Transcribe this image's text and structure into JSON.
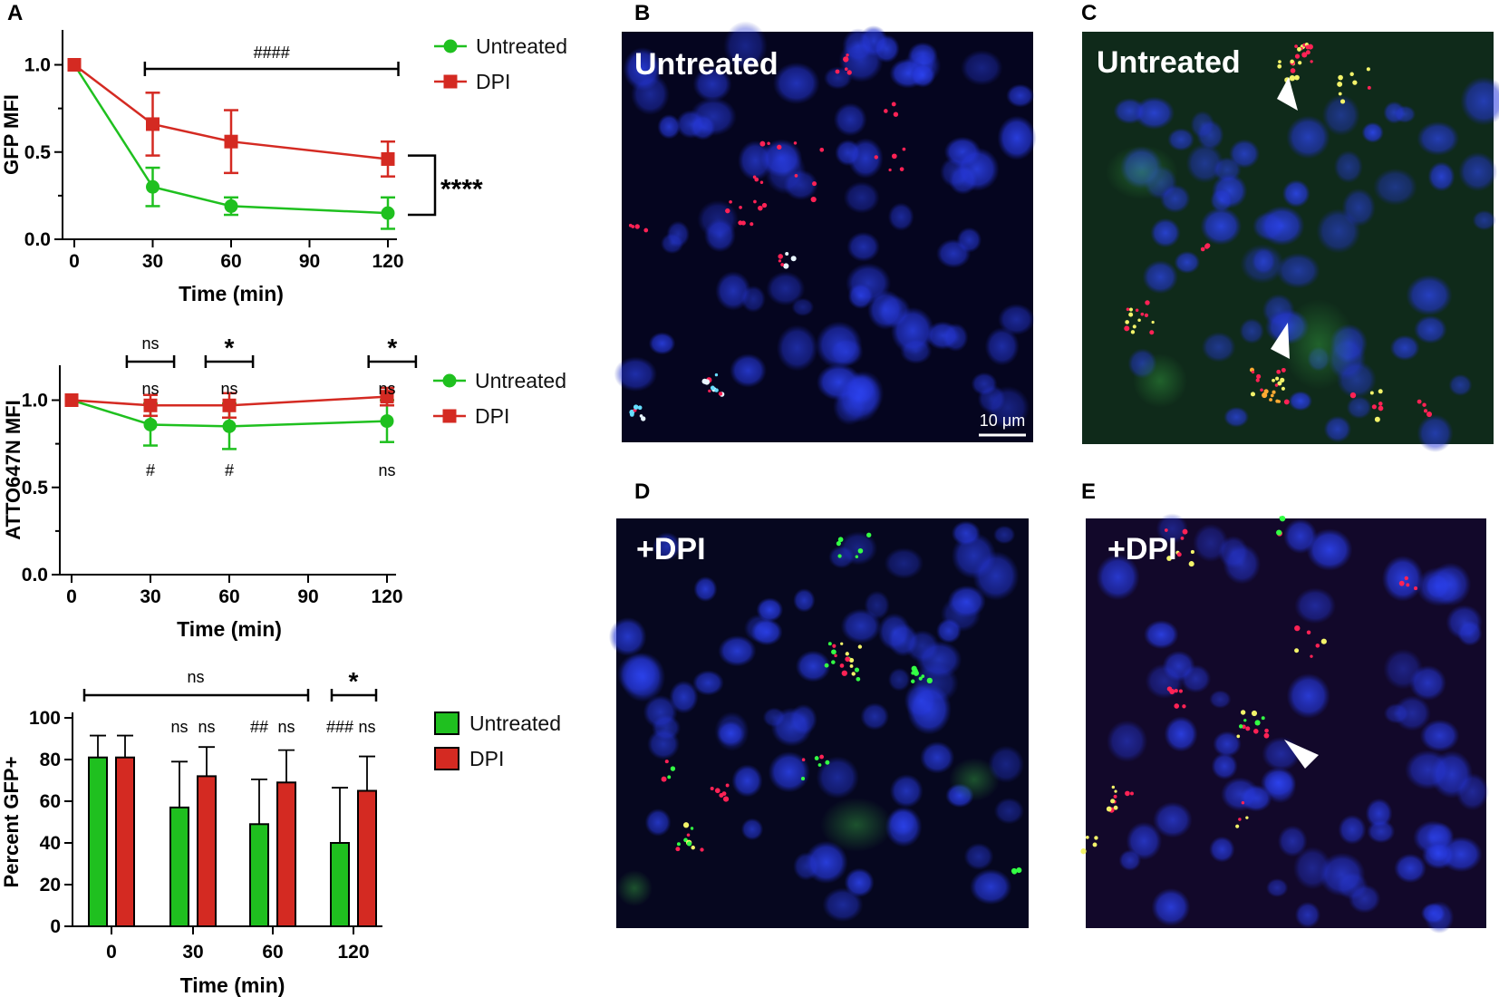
{
  "panel_labels": {
    "a": "A",
    "b": "B",
    "c": "C",
    "d": "D",
    "e": "E"
  },
  "colors": {
    "untreated": "#1fc01f",
    "dpi": "#d42a22",
    "nucleus": "#2233dd",
    "spot_red": "#ff2255",
    "spot_green": "#33ff44",
    "spot_yellow": "#f3f36a"
  },
  "chart_data": [
    {
      "type": "line",
      "x": [
        0,
        30,
        60,
        120
      ],
      "xticks": [
        "0",
        "30",
        "60",
        "90",
        "120"
      ],
      "xlabel": "Time (min)",
      "ylabel": "GFP MFI",
      "yticks": [
        "0.0",
        "0.5",
        "1.0"
      ],
      "ylim": [
        0,
        1.2
      ],
      "series": [
        {
          "name": "Untreated",
          "values": [
            1.0,
            0.3,
            0.19,
            0.15
          ],
          "errors": [
            0,
            0.11,
            0.05,
            0.09
          ]
        },
        {
          "name": "DPI",
          "values": [
            1.0,
            0.66,
            0.56,
            0.46
          ],
          "errors": [
            0,
            0.18,
            0.18,
            0.1
          ]
        }
      ],
      "annotations": {
        "hash": "####",
        "stars": "****"
      },
      "legend": [
        "Untreated",
        "DPI"
      ]
    },
    {
      "type": "line",
      "x": [
        0,
        30,
        60,
        120
      ],
      "xticks": [
        "0",
        "30",
        "60",
        "90",
        "120"
      ],
      "xlabel": "Time (min)",
      "ylabel": "ATTO647N MFI",
      "yticks": [
        "0.0",
        "0.5",
        "1.0"
      ],
      "ylim": [
        0,
        1.2
      ],
      "series": [
        {
          "name": "Untreated",
          "values": [
            1.0,
            0.86,
            0.85,
            0.88
          ],
          "errors": [
            0,
            0.12,
            0.13,
            0.12
          ]
        },
        {
          "name": "DPI",
          "values": [
            1.0,
            0.97,
            0.97,
            1.02
          ],
          "errors": [
            0,
            0.06,
            0.07,
            0.05
          ]
        }
      ],
      "annotations": {
        "top": [
          "ns",
          "*",
          "*"
        ],
        "dpi_sig": [
          "ns",
          "ns",
          "ns"
        ],
        "untreated_sig": [
          "#",
          "#",
          "ns"
        ]
      },
      "legend": [
        "Untreated",
        "DPI"
      ]
    },
    {
      "type": "bar",
      "categories": [
        "0",
        "30",
        "60",
        "120"
      ],
      "xlabel": "Time (min)",
      "ylabel": "Percent GFP+",
      "yticks": [
        "0",
        "20",
        "40",
        "60",
        "80",
        "100"
      ],
      "ylim": [
        0,
        100
      ],
      "series": [
        {
          "name": "Untreated",
          "values": [
            81,
            57,
            49,
            40
          ],
          "errors": [
            10.5,
            22,
            21.5,
            26.5
          ]
        },
        {
          "name": "DPI",
          "values": [
            81,
            72,
            69,
            65
          ],
          "errors": [
            10.5,
            14,
            15.5,
            16.5
          ]
        }
      ],
      "annotations": {
        "overall": "ns",
        "star120": "*",
        "untreated_sig": [
          "",
          "ns",
          "##",
          "###"
        ],
        "dpi_sig": [
          "",
          "ns",
          "ns",
          "ns"
        ]
      },
      "legend": [
        "Untreated",
        "DPI"
      ]
    }
  ],
  "micrographs": {
    "b": {
      "label": "Untreated",
      "scalebar": "10 μm"
    },
    "c": {
      "label": "Untreated"
    },
    "d": {
      "label": "+DPI"
    },
    "e": {
      "label": "+DPI"
    }
  }
}
